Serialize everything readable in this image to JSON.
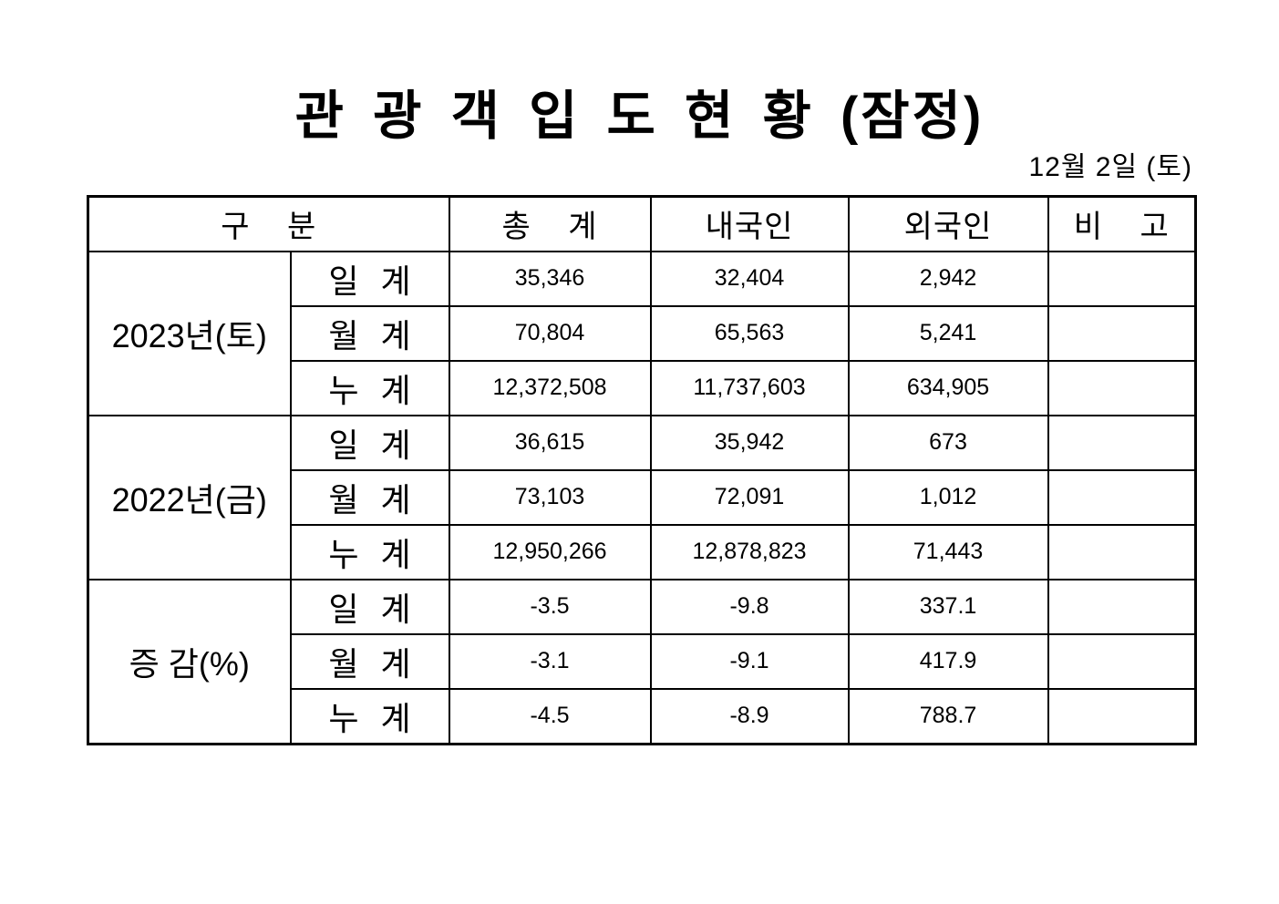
{
  "title": "관 광 객 입 도 현 황 (잠정)",
  "date": "12월 2일 (토)",
  "table": {
    "headers": {
      "category": "구 분",
      "total": "총 계",
      "domestic": "내국인",
      "foreign": "외국인",
      "note": "비 고"
    },
    "groups": [
      {
        "label": "2023년(토)",
        "rows": [
          {
            "label": "일 계",
            "total": "35,346",
            "domestic": "32,404",
            "foreign": "2,942",
            "note": ""
          },
          {
            "label": "월 계",
            "total": "70,804",
            "domestic": "65,563",
            "foreign": "5,241",
            "note": ""
          },
          {
            "label": "누 계",
            "total": "12,372,508",
            "domestic": "11,737,603",
            "foreign": "634,905",
            "note": ""
          }
        ]
      },
      {
        "label": "2022년(금)",
        "rows": [
          {
            "label": "일 계",
            "total": "36,615",
            "domestic": "35,942",
            "foreign": "673",
            "note": ""
          },
          {
            "label": "월 계",
            "total": "73,103",
            "domestic": "72,091",
            "foreign": "1,012",
            "note": ""
          },
          {
            "label": "누 계",
            "total": "12,950,266",
            "domestic": "12,878,823",
            "foreign": "71,443",
            "note": ""
          }
        ]
      },
      {
        "label": "증 감(%)",
        "rows": [
          {
            "label": "일 계",
            "total": "-3.5",
            "domestic": "-9.8",
            "foreign": "337.1",
            "note": ""
          },
          {
            "label": "월 계",
            "total": "-3.1",
            "domestic": "-9.1",
            "foreign": "417.9",
            "note": ""
          },
          {
            "label": "누 계",
            "total": "-4.5",
            "domestic": "-8.9",
            "foreign": "788.7",
            "note": ""
          }
        ]
      }
    ]
  }
}
